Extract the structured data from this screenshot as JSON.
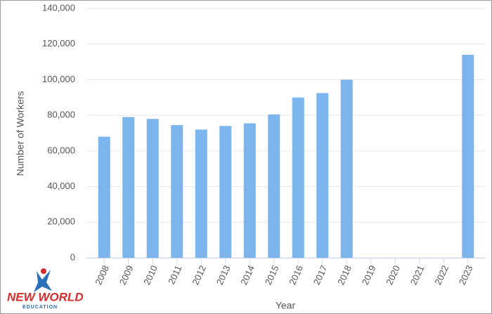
{
  "chart_data": {
    "type": "bar",
    "xlabel": "Year",
    "ylabel": "Number of Workers",
    "categories": [
      "2008",
      "2009",
      "2010",
      "2011",
      "2012",
      "2013",
      "2014",
      "2015",
      "2016",
      "2017",
      "2018",
      "2019",
      "2020",
      "2021",
      "2022",
      "2023"
    ],
    "values": [
      68000,
      79000,
      78000,
      74500,
      72000,
      74000,
      75500,
      80500,
      90000,
      92500,
      100000,
      null,
      null,
      null,
      null,
      114000
    ],
    "color": "#7cb5ec",
    "ylim": [
      0,
      140000
    ],
    "yticks": [
      0,
      {
        "value": 20000,
        "label": "20,000"
      },
      {
        "value": 40000,
        "label": "40,000"
      },
      {
        "value": 60000,
        "label": "60,000"
      },
      {
        "value": 80000,
        "label": "80,000"
      },
      {
        "value": 100000,
        "label": "100,000"
      },
      {
        "value": 120000,
        "label": "120,000"
      },
      {
        "value": 140000,
        "label": "140,000"
      }
    ],
    "grid": true
  },
  "logo": {
    "name": "NEW WORLD",
    "tagline": "EDUCATION"
  }
}
